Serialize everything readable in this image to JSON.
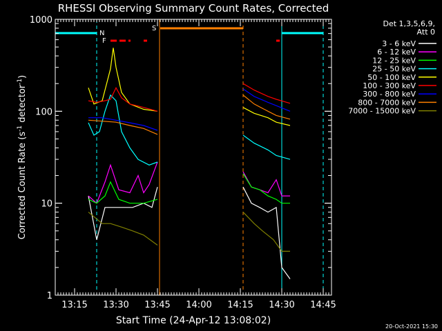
{
  "chart_data": {
    "type": "line",
    "title": "RHESSI Observing Summary Count Rates, Corrected",
    "xlabel": "Start Time (24-Apr-12 13:08:02)",
    "ylabel_main": "Corrected Count Rate (s",
    "ylabel_sup1": "-1",
    "ylabel_mid": " detector",
    "ylabel_sup2": "-1",
    "ylabel_end": ")",
    "yscale": "log",
    "xlim": [
      "13:08",
      "14:48"
    ],
    "ylim": [
      1,
      1000
    ],
    "x_ticks": [
      "13:15",
      "13:30",
      "13:45",
      "14:00",
      "14:15",
      "14:30",
      "14:45"
    ],
    "y_ticks": [
      "1",
      "10",
      "100",
      "1000"
    ],
    "legend_header": [
      "Det 1,3,5,6,9,",
      "Att 0"
    ],
    "timestamp": "20-Oct-2021 15:30",
    "flags": {
      "N_label": "N",
      "F_label": "F",
      "S_label": "S",
      "night": [
        [
          "13:08",
          "13:23"
        ],
        [
          "14:30",
          "14:45"
        ]
      ],
      "flare": [
        [
          "13:28",
          "13:35"
        ],
        [
          "13:40",
          "13:41"
        ],
        [
          "14:28",
          "14:29"
        ]
      ],
      "saa": [
        [
          "13:46",
          "14:16"
        ]
      ]
    },
    "series": [
      {
        "name": "3 - 6 keV",
        "color": "#ffffff",
        "seg1": [
          [
            "13:20",
            12
          ],
          [
            "13:23",
            4
          ],
          [
            "13:26",
            9
          ],
          [
            "13:30",
            9
          ],
          [
            "13:33",
            9
          ],
          [
            "13:36",
            9
          ],
          [
            "13:40",
            10
          ],
          [
            "13:43",
            9
          ],
          [
            "13:45",
            15
          ]
        ],
        "seg2": [
          [
            "14:16",
            15
          ],
          [
            "14:19",
            10
          ],
          [
            "14:22",
            9
          ],
          [
            "14:25",
            8
          ],
          [
            "14:28",
            9
          ],
          [
            "14:30",
            2
          ],
          [
            "14:33",
            1.5
          ]
        ]
      },
      {
        "name": "6 - 12 keV",
        "color": "#ff00ff",
        "seg1": [
          [
            "13:20",
            12
          ],
          [
            "13:23",
            10
          ],
          [
            "13:26",
            17
          ],
          [
            "13:28",
            26
          ],
          [
            "13:31",
            14
          ],
          [
            "13:35",
            13
          ],
          [
            "13:38",
            20
          ],
          [
            "13:40",
            13
          ],
          [
            "13:42",
            16
          ],
          [
            "13:45",
            28
          ]
        ],
        "seg2": [
          [
            "14:16",
            22
          ],
          [
            "14:19",
            15
          ],
          [
            "14:22",
            14
          ],
          [
            "14:25",
            13
          ],
          [
            "14:28",
            18
          ],
          [
            "14:30",
            12
          ],
          [
            "14:33",
            12
          ]
        ]
      },
      {
        "name": "12 - 25 keV",
        "color": "#00ff00",
        "seg1": [
          [
            "13:20",
            11
          ],
          [
            "13:23",
            10
          ],
          [
            "13:26",
            12
          ],
          [
            "13:28",
            17
          ],
          [
            "13:31",
            11
          ],
          [
            "13:35",
            10
          ],
          [
            "13:40",
            10
          ],
          [
            "13:45",
            11
          ]
        ],
        "seg2": [
          [
            "14:16",
            21
          ],
          [
            "14:19",
            15
          ],
          [
            "14:22",
            14
          ],
          [
            "14:25",
            12
          ],
          [
            "14:28",
            11
          ],
          [
            "14:30",
            10
          ],
          [
            "14:33",
            10
          ]
        ]
      },
      {
        "name": "25 - 50 keV",
        "color": "#00ffff",
        "seg1": [
          [
            "13:20",
            75
          ],
          [
            "13:22",
            55
          ],
          [
            "13:24",
            60
          ],
          [
            "13:26",
            100
          ],
          [
            "13:28",
            150
          ],
          [
            "13:30",
            130
          ],
          [
            "13:32",
            60
          ],
          [
            "13:35",
            40
          ],
          [
            "13:38",
            30
          ],
          [
            "13:42",
            26
          ],
          [
            "13:45",
            28
          ]
        ],
        "seg2": [
          [
            "14:16",
            55
          ],
          [
            "14:20",
            45
          ],
          [
            "14:25",
            38
          ],
          [
            "14:28",
            33
          ],
          [
            "14:33",
            30
          ]
        ]
      },
      {
        "name": "50 - 100 keV",
        "color": "#ffff00",
        "seg1": [
          [
            "13:20",
            180
          ],
          [
            "13:22",
            120
          ],
          [
            "13:25",
            130
          ],
          [
            "13:28",
            290
          ],
          [
            "13:29",
            490
          ],
          [
            "13:30",
            300
          ],
          [
            "13:32",
            160
          ],
          [
            "13:35",
            120
          ],
          [
            "13:40",
            105
          ],
          [
            "13:45",
            100
          ]
        ],
        "seg2": [
          [
            "14:16",
            110
          ],
          [
            "14:20",
            95
          ],
          [
            "14:25",
            85
          ],
          [
            "14:28",
            76
          ],
          [
            "14:33",
            70
          ]
        ]
      },
      {
        "name": "100 - 300 keV",
        "color": "#ff0000",
        "seg1": [
          [
            "13:20",
            130
          ],
          [
            "13:23",
            125
          ],
          [
            "13:26",
            130
          ],
          [
            "13:28",
            135
          ],
          [
            "13:30",
            180
          ],
          [
            "13:32",
            140
          ],
          [
            "13:35",
            120
          ],
          [
            "13:40",
            110
          ],
          [
            "13:45",
            100
          ]
        ],
        "seg2": [
          [
            "14:16",
            200
          ],
          [
            "14:20",
            170
          ],
          [
            "14:25",
            145
          ],
          [
            "14:28",
            135
          ],
          [
            "14:33",
            122
          ]
        ]
      },
      {
        "name": "300 - 800 keV",
        "color": "#0000ff",
        "seg1": [
          [
            "13:20",
            85
          ],
          [
            "13:25",
            85
          ],
          [
            "13:30",
            80
          ],
          [
            "13:35",
            75
          ],
          [
            "13:40",
            70
          ],
          [
            "13:45",
            62
          ]
        ],
        "seg2": [
          [
            "14:16",
            175
          ],
          [
            "14:20",
            145
          ],
          [
            "14:25",
            125
          ],
          [
            "14:28",
            115
          ],
          [
            "14:33",
            100
          ]
        ]
      },
      {
        "name": "800 - 7000 keV",
        "color": "#ff8000",
        "seg1": [
          [
            "13:20",
            80
          ],
          [
            "13:25",
            78
          ],
          [
            "13:30",
            76
          ],
          [
            "13:35",
            70
          ],
          [
            "13:40",
            65
          ],
          [
            "13:45",
            56
          ]
        ],
        "seg2": [
          [
            "14:16",
            150
          ],
          [
            "14:20",
            120
          ],
          [
            "14:25",
            100
          ],
          [
            "14:28",
            90
          ],
          [
            "14:33",
            82
          ]
        ]
      },
      {
        "name": "7000 - 15000 keV",
        "color": "#808000",
        "seg1": [
          [
            "13:20",
            8
          ],
          [
            "13:25",
            6
          ],
          [
            "13:28",
            6
          ],
          [
            "13:32",
            5.5
          ],
          [
            "13:36",
            5
          ],
          [
            "13:40",
            4.5
          ],
          [
            "13:45",
            3.5
          ]
        ],
        "seg2": [
          [
            "14:16",
            8
          ],
          [
            "14:20",
            6
          ],
          [
            "14:23",
            5
          ],
          [
            "14:27",
            4
          ],
          [
            "14:30",
            3
          ],
          [
            "14:33",
            3
          ]
        ]
      }
    ]
  }
}
